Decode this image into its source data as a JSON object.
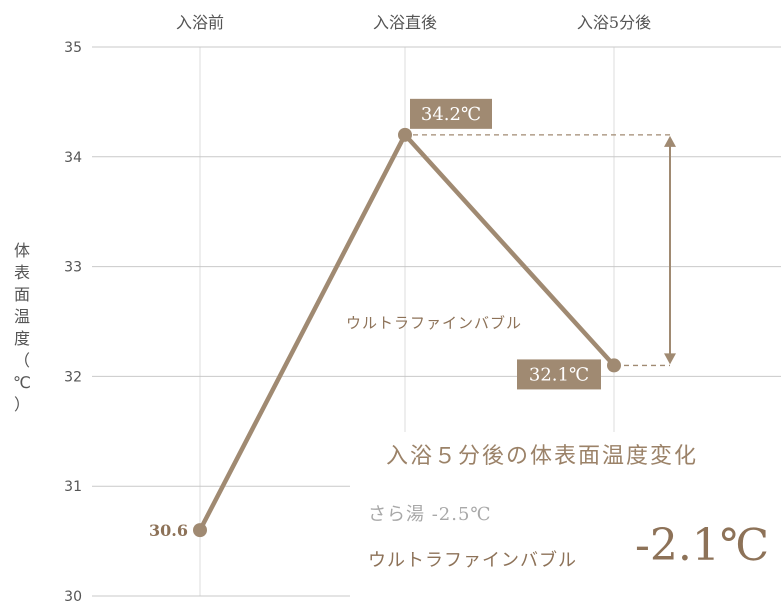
{
  "chart_data": {
    "type": "line",
    "x_categories": [
      "入浴前",
      "入浴直後",
      "入浴5分後"
    ],
    "series": [
      {
        "name": "ウルトラファインバブル",
        "values": [
          30.6,
          34.2,
          32.1
        ]
      }
    ],
    "ylim": [
      30,
      35
    ],
    "y_ticks": [
      "30",
      "31",
      "32",
      "33",
      "34",
      "35"
    ],
    "ylabel_chars": [
      "体",
      "表",
      "面",
      "温",
      "度",
      "（",
      "℃",
      "）"
    ],
    "point_labels": [
      "30.6",
      "34.2℃",
      "32.1℃"
    ],
    "grid": true,
    "line_color": "#a08a72",
    "label_bg_color": "#a08a72"
  },
  "summary": {
    "title": "入浴５分後の体表面温度変化",
    "sara_label": "さら湯 -2.5℃",
    "ufb_label": "ウルトラファインバブル",
    "ufb_value": "-2.1℃"
  }
}
